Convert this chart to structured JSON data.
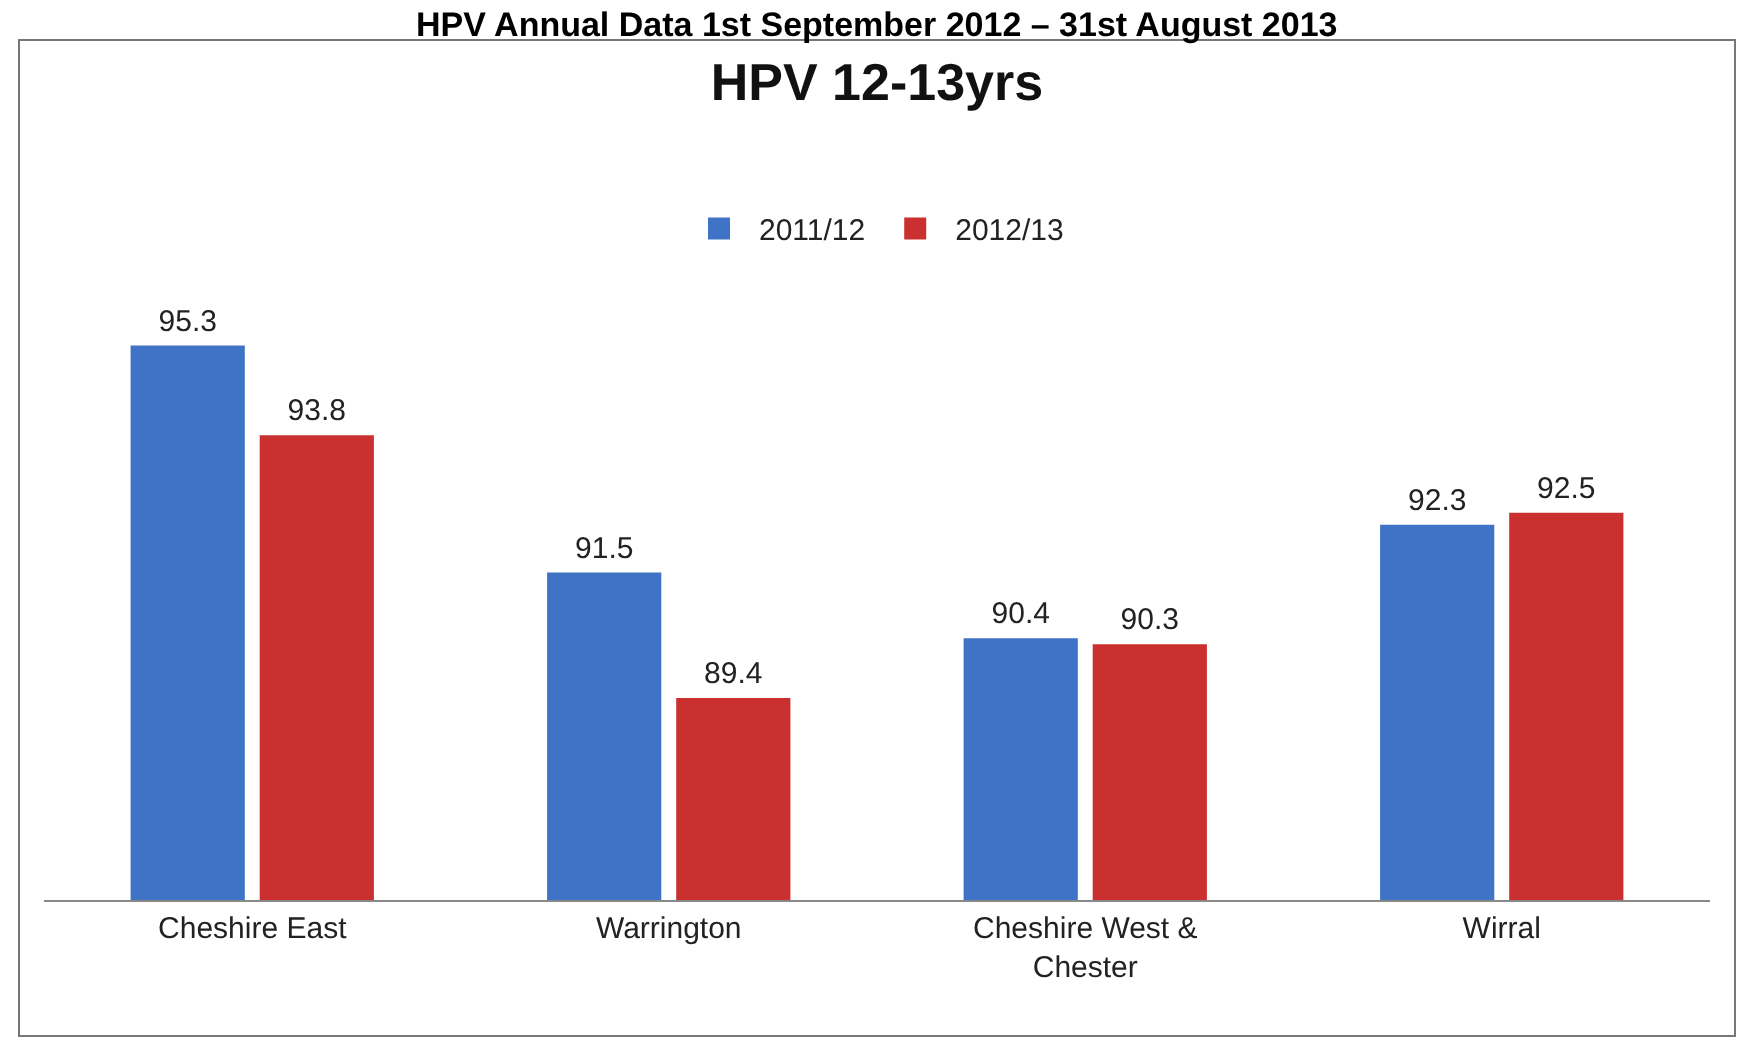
{
  "chart_data": {
    "type": "bar",
    "title": "HPV 12-13yrs",
    "annotations": [
      "HPV Annual Data 1st September 2012 – 31st August 2013"
    ],
    "categories": [
      "Cheshire East",
      "Warrington",
      "Cheshire West & Chester",
      "Wirral"
    ],
    "series": [
      {
        "name": "2011/12",
        "color": "#3f73c6",
        "values": [
          95.3,
          91.5,
          90.4,
          92.3
        ]
      },
      {
        "name": "2012/13",
        "color": "#c9302f",
        "values": [
          93.8,
          89.4,
          90.3,
          92.5
        ]
      }
    ],
    "ylim": [
      86,
      100.4
    ],
    "data_labels": true,
    "legend": "top",
    "tick_labels": "x"
  }
}
